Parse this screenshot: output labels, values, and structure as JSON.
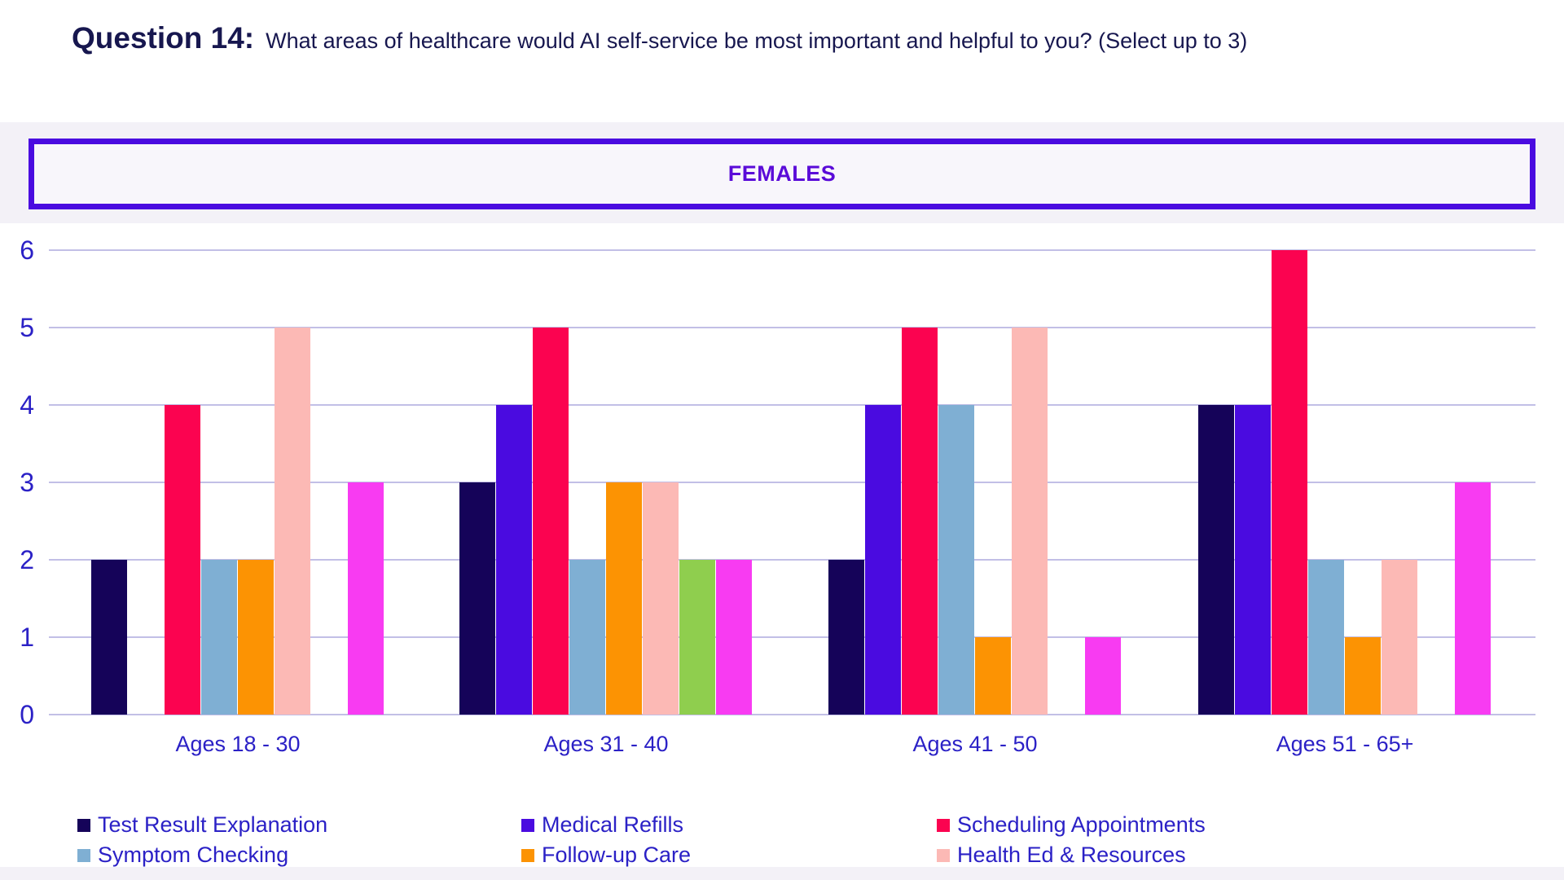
{
  "title": {
    "prefix": "Question 14:",
    "text": "What areas of healthcare would AI self-service be most important and helpful to you? (Select up to 3)"
  },
  "banner": {
    "label": "FEMALES"
  },
  "colors": {
    "title_text": "#17174F",
    "axis_text": "#2B21C6",
    "gridline": "#C2BFE6",
    "banner_border": "#4A0BE0",
    "banner_text": "#5A0BD8",
    "banner_fill": "#F8F6FB",
    "band_background": "#F3F1F7"
  },
  "chart_data": {
    "type": "bar",
    "title": "FEMALES",
    "categories": [
      "Ages 18 - 30",
      "Ages 31 - 40",
      "Ages 41 - 50",
      "Ages 51 - 65+"
    ],
    "series": [
      {
        "name": "Test Result Explanation",
        "color": "#150359",
        "values": [
          2,
          3,
          2,
          4
        ],
        "legend_visible": true
      },
      {
        "name": "Medical Refills",
        "color": "#4A0BE0",
        "values": [
          0,
          4,
          4,
          4
        ],
        "legend_visible": true
      },
      {
        "name": "Scheduling Appointments",
        "color": "#FB0350",
        "values": [
          4,
          5,
          5,
          6
        ],
        "legend_visible": true
      },
      {
        "name": "Symptom Checking",
        "color": "#7FAFD3",
        "values": [
          2,
          2,
          4,
          2
        ],
        "legend_visible": true
      },
      {
        "name": "Follow-up Care",
        "color": "#FC9303",
        "values": [
          2,
          3,
          1,
          1
        ],
        "legend_visible": true
      },
      {
        "name": "Health Ed & Resources",
        "color": "#FCB9B5",
        "values": [
          5,
          3,
          5,
          2
        ],
        "legend_visible": true
      },
      {
        "name": "",
        "color_name": "green",
        "color": "#8FCE4E",
        "values": [
          0,
          2,
          0,
          0
        ],
        "legend_visible": false
      },
      {
        "name": "",
        "color_name": "magenta",
        "color": "#F83BF2",
        "values": [
          3,
          2,
          1,
          3
        ],
        "legend_visible": false
      }
    ],
    "xlabel": "",
    "ylabel": "",
    "ylim": [
      0,
      6
    ],
    "yticks": [
      0,
      1,
      2,
      3,
      4,
      5,
      6
    ],
    "grid": true,
    "legend_position": "bottom"
  }
}
